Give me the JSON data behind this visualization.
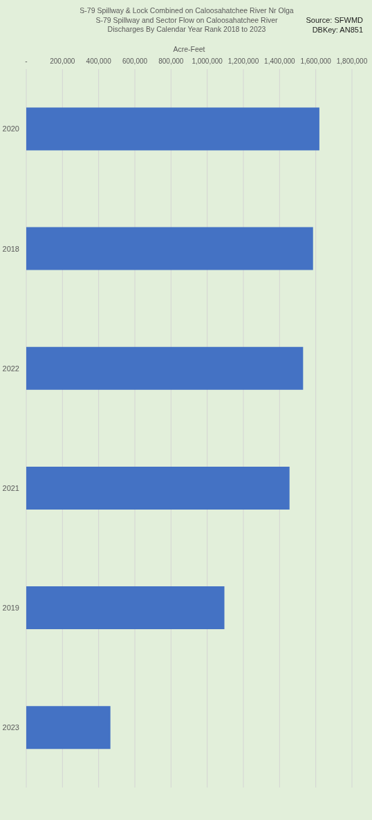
{
  "chart_data": {
    "type": "bar",
    "orientation": "horizontal",
    "title": "S-79 Spillway & Lock Combined on Caloosahatchee River Nr Olga",
    "subtitle": "S-79 Spillway and Sector Flow on Caloosahatchee River\nDischarges By Calendar Year Rank 2018 to 2023",
    "xlabel": "Acre-Feet",
    "annotations": [
      "Source: SFWMD",
      "DBKey: AN851"
    ],
    "categories": [
      "2020",
      "2018",
      "2022",
      "2021",
      "2019",
      "2023"
    ],
    "values": [
      1620000,
      1585000,
      1530000,
      1455000,
      1095000,
      465000
    ],
    "color": "#4472c4",
    "xlim": [
      0,
      1800000
    ],
    "xticks": [
      {
        "value": 0,
        "label": "-"
      },
      {
        "value": 200000,
        "label": "200,000"
      },
      {
        "value": 400000,
        "label": "400,000"
      },
      {
        "value": 600000,
        "label": "600,000"
      },
      {
        "value": 800000,
        "label": "800,000"
      },
      {
        "value": 1000000,
        "label": "1,000,000"
      },
      {
        "value": 1200000,
        "label": "1,200,000"
      },
      {
        "value": 1400000,
        "label": "1,400,000"
      },
      {
        "value": 1600000,
        "label": "1,600,000"
      },
      {
        "value": 1800000,
        "label": "1,800,000"
      }
    ],
    "grid": "x"
  }
}
